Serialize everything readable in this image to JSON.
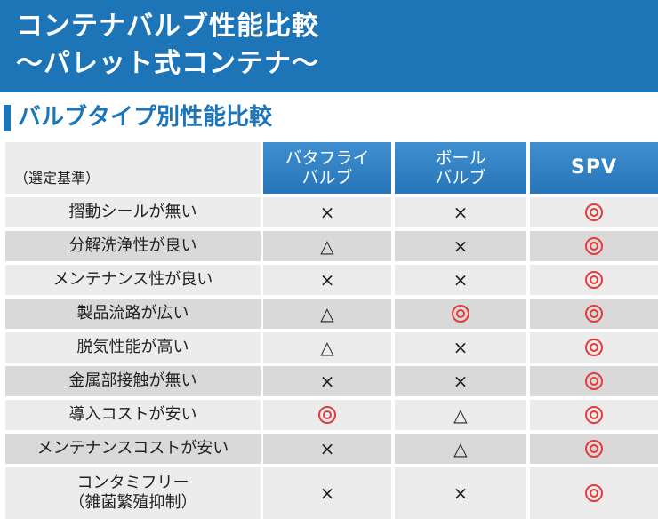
{
  "banner": {
    "line1": "コンテナバルブ性能比較",
    "line2": "〜パレット式コンテナ〜",
    "color": "#1d74b7"
  },
  "section": {
    "title": "バルブタイプ別性能比較"
  },
  "table": {
    "criteria_label": "（選定基準）",
    "columns": [
      {
        "line1": "バタフライ",
        "line2": "バルブ"
      },
      {
        "line1": "ボール",
        "line2": "バルブ"
      },
      {
        "line1": "SPV",
        "line2": ""
      }
    ],
    "rows": [
      {
        "label1": "摺動シールが無い",
        "label2": "",
        "v": [
          "×",
          "×",
          "◎"
        ]
      },
      {
        "label1": "分解洗浄性が良い",
        "label2": "",
        "v": [
          "△",
          "×",
          "◎"
        ]
      },
      {
        "label1": "メンテナンス性が良い",
        "label2": "",
        "v": [
          "×",
          "×",
          "◎"
        ]
      },
      {
        "label1": "製品流路が広い",
        "label2": "",
        "v": [
          "△",
          "◎",
          "◎"
        ]
      },
      {
        "label1": "脱気性能が高い",
        "label2": "",
        "v": [
          "△",
          "×",
          "◎"
        ]
      },
      {
        "label1": "金属部接触が無い",
        "label2": "",
        "v": [
          "×",
          "×",
          "◎"
        ]
      },
      {
        "label1": "導入コストが安い",
        "label2": "",
        "v": [
          "◎",
          "△",
          "◎"
        ]
      },
      {
        "label1": "メンテナンスコストが安い",
        "label2": "",
        "v": [
          "×",
          "△",
          "◎"
        ]
      },
      {
        "label1": "コンタミフリー",
        "label2": "（雑菌繁殖抑制）",
        "v": [
          "×",
          "×",
          "◎"
        ]
      }
    ],
    "mark_color_best": "#e53b3b"
  }
}
